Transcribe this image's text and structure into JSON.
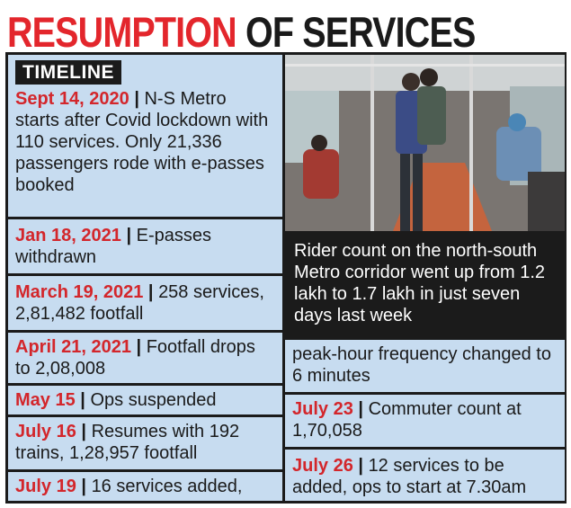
{
  "headline": {
    "part1": "RESUMPTION",
    "part2": "OF SERVICES"
  },
  "timeline": {
    "tag": "TIMELINE",
    "entries": [
      {
        "date": "Sept 14, 2020",
        "text": "N-S Metro starts after Covid lockdown with 110 services. Only 21,336 passengers rode with e-passes booked"
      },
      {
        "date": "Jan 18, 2021",
        "text": "E-passes withdrawn"
      },
      {
        "date": "March 19, 2021",
        "text": "258 services, 2,81,482 footfall"
      },
      {
        "date": "April 21, 2021",
        "text": "Footfall drops to 2,08,008"
      },
      {
        "date": "May 15",
        "text": "Ops suspended"
      },
      {
        "date": "July 16",
        "text": "Resumes with 192 trains, 1,28,957 footfall"
      },
      {
        "date": "July 19",
        "text": "16 services added,"
      }
    ]
  },
  "photo_caption": "Rider count on the north-south Metro corridor went up from 1.2 lakh to 1.7 lakh in just seven days last week",
  "right_column": {
    "continuation": "peak-hour frequency changed to 6 minutes",
    "entries": [
      {
        "date": "July 23",
        "text": "Commuter count at 1,70,058"
      },
      {
        "date": "July 26",
        "text": "12 services to be added, ops to start at 7.30am"
      }
    ]
  },
  "separator": "|",
  "colors": {
    "accent_red": "#e3262c",
    "panel_blue": "#c7dcf0",
    "frame_black": "#1b1b1b"
  }
}
